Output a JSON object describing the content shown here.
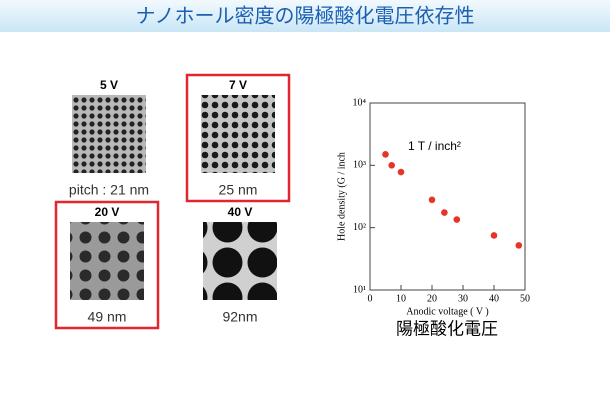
{
  "header": {
    "title": "ナノホール密度の陽極酸化電圧依存性"
  },
  "images": [
    {
      "label": "5 V",
      "caption": "pitch : 21 nm",
      "highlighted": false
    },
    {
      "label": "7 V",
      "caption": "25 nm",
      "highlighted": true
    },
    {
      "label": "20 V",
      "caption": "49 nm",
      "highlighted": true
    },
    {
      "label": "40 V",
      "caption": "92nm",
      "highlighted": false
    }
  ],
  "chart_data": {
    "type": "scatter",
    "x_label": "Anodic voltage ( V )",
    "y_label": "Hole density (G / inch",
    "annotation": "1 T / inch²",
    "subtitle": "陽極酸化電圧",
    "color": "#e8332a",
    "log_y": true,
    "x": [
      5,
      7,
      10,
      20,
      24,
      28,
      40,
      48
    ],
    "values": [
      1500,
      1000,
      780,
      280,
      175,
      135,
      75,
      52
    ],
    "xlim": [
      0,
      50
    ],
    "xticks": [
      0,
      10,
      20,
      30,
      40,
      50
    ],
    "ylim": [
      10,
      10000
    ],
    "yticks": [
      {
        "value": 10,
        "label": "10¹"
      },
      {
        "value": 100,
        "label": "10²"
      },
      {
        "value": 1000,
        "label": "10³"
      },
      {
        "value": 10000,
        "label": "10⁴"
      }
    ]
  }
}
